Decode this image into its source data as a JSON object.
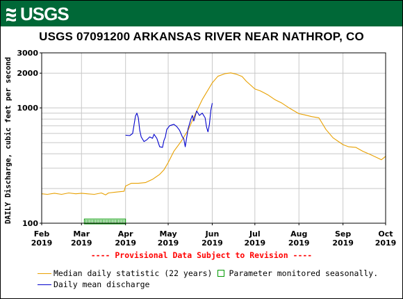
{
  "header": {
    "agency_logo": "USGS",
    "title": "USGS 07091200 ARKANSAS RIVER NEAR NATHROP, CO"
  },
  "colors": {
    "banner": "#006837",
    "median": "#e8a000",
    "daily_mean": "#0000cc",
    "seasonal": "#009900",
    "provisional": "#ff0000",
    "grid": "#c8c8c8"
  },
  "notice": "---- Provisional Data Subject to Revision ----",
  "legend": {
    "median_label": "Median daily statistic (22 years)",
    "seasonal_label": "Parameter monitored seasonally.",
    "daily_label": "Daily mean discharge"
  },
  "chart_data": {
    "type": "line",
    "title": "USGS 07091200 ARKANSAS RIVER NEAR NATHROP, CO",
    "ylabel": "DAILY Discharge, cubic feet per second",
    "yscale": "log",
    "ylim": [
      100,
      3000
    ],
    "y_ticks": [
      {
        "value": 100,
        "label": "100"
      },
      {
        "value": 1000,
        "label": "1000"
      },
      {
        "value": 2000,
        "label": "2000"
      },
      {
        "value": 3000,
        "label": "3000"
      }
    ],
    "x_ticks": [
      {
        "date": "2019-02-01",
        "line1": "Feb",
        "line2": "2019"
      },
      {
        "date": "2019-03-01",
        "line1": "Mar",
        "line2": "2019"
      },
      {
        "date": "2019-04-01",
        "line1": "Apr",
        "line2": "2019"
      },
      {
        "date": "2019-05-01",
        "line1": "May",
        "line2": "2019"
      },
      {
        "date": "2019-06-01",
        "line1": "Jun",
        "line2": "2019"
      },
      {
        "date": "2019-07-01",
        "line1": "Jul",
        "line2": "2019"
      },
      {
        "date": "2019-08-01",
        "line1": "Aug",
        "line2": "2019"
      },
      {
        "date": "2019-09-01",
        "line1": "Sep",
        "line2": "2019"
      },
      {
        "date": "2019-10-01",
        "line1": "Oct",
        "line2": "2019"
      }
    ],
    "xlim": [
      "2019-02-01",
      "2019-10-01"
    ],
    "grid": true,
    "series": [
      {
        "name": "Median daily statistic (22 years)",
        "x": [
          "2019-02-01",
          "2019-02-05",
          "2019-02-10",
          "2019-02-15",
          "2019-02-20",
          "2019-02-25",
          "2019-03-01",
          "2019-03-05",
          "2019-03-10",
          "2019-03-15",
          "2019-03-18",
          "2019-03-20",
          "2019-03-25",
          "2019-03-31",
          "2019-04-01",
          "2019-04-05",
          "2019-04-10",
          "2019-04-15",
          "2019-04-20",
          "2019-04-25",
          "2019-04-28",
          "2019-05-01",
          "2019-05-05",
          "2019-05-10",
          "2019-05-15",
          "2019-05-20",
          "2019-05-25",
          "2019-06-01",
          "2019-06-05",
          "2019-06-10",
          "2019-06-14",
          "2019-06-18",
          "2019-06-22",
          "2019-06-25",
          "2019-07-01",
          "2019-07-05",
          "2019-07-10",
          "2019-07-15",
          "2019-07-20",
          "2019-07-25",
          "2019-08-01",
          "2019-08-05",
          "2019-08-10",
          "2019-08-15",
          "2019-08-20",
          "2019-08-25",
          "2019-09-01",
          "2019-09-05",
          "2019-09-10",
          "2019-09-15",
          "2019-09-20",
          "2019-09-25",
          "2019-09-28",
          "2019-10-01"
        ],
        "y": [
          180,
          178,
          182,
          178,
          183,
          180,
          182,
          180,
          178,
          183,
          176,
          183,
          186,
          189,
          210,
          222,
          222,
          225,
          240,
          265,
          290,
          335,
          420,
          510,
          640,
          880,
          1180,
          1650,
          1880,
          1980,
          2010,
          1960,
          1870,
          1700,
          1460,
          1400,
          1300,
          1180,
          1100,
          1000,
          890,
          870,
          840,
          820,
          650,
          550,
          480,
          460,
          455,
          420,
          395,
          370,
          355,
          380
        ]
      },
      {
        "name": "Daily mean discharge",
        "x": [
          "2019-04-01",
          "2019-04-04",
          "2019-04-06",
          "2019-04-08",
          "2019-04-09",
          "2019-04-10",
          "2019-04-11",
          "2019-04-12",
          "2019-04-14",
          "2019-04-16",
          "2019-04-18",
          "2019-04-20",
          "2019-04-21",
          "2019-04-23",
          "2019-04-25",
          "2019-04-27",
          "2019-04-28",
          "2019-04-29",
          "2019-04-30",
          "2019-05-02",
          "2019-05-05",
          "2019-05-07",
          "2019-05-09",
          "2019-05-11",
          "2019-05-12",
          "2019-05-13",
          "2019-05-15",
          "2019-05-17",
          "2019-05-18",
          "2019-05-19",
          "2019-05-21",
          "2019-05-23",
          "2019-05-25",
          "2019-05-27",
          "2019-05-28",
          "2019-05-29",
          "2019-05-30",
          "2019-05-31",
          "2019-06-01"
        ],
        "y": [
          580,
          575,
          600,
          850,
          900,
          820,
          640,
          560,
          510,
          530,
          560,
          545,
          590,
          545,
          460,
          455,
          520,
          560,
          650,
          700,
          720,
          690,
          640,
          560,
          540,
          460,
          660,
          800,
          860,
          770,
          940,
          860,
          900,
          820,
          680,
          620,
          720,
          950,
          1100
        ]
      }
    ],
    "seasonal_markers": {
      "label": "Parameter monitored seasonally.",
      "start": "2019-03-03",
      "end": "2019-04-01"
    }
  }
}
